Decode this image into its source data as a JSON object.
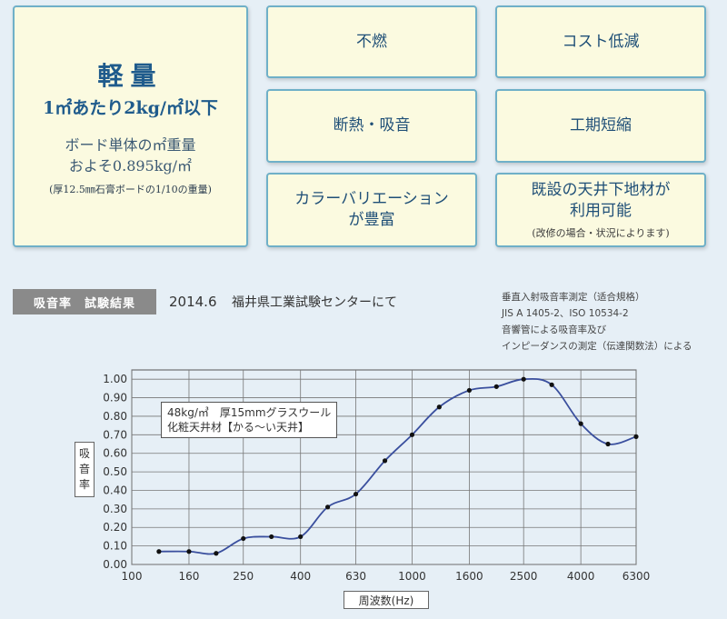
{
  "features": {
    "lightweight": {
      "title": "軽量",
      "subtitle": "1㎡あたり2kg/㎡以下",
      "line1": "ボード単体の㎡重量",
      "line2": "およそ0.895kg/㎡",
      "note": "(厚12.5㎜石膏ボードの1/10の重量)"
    },
    "items": [
      {
        "text": "不燃"
      },
      {
        "text": "コスト低減"
      },
      {
        "text": "断熱・吸音"
      },
      {
        "text": "工期短縮"
      },
      {
        "line1": "カラーバリエーション",
        "line2": "が豊富"
      },
      {
        "line1": "既設の天井下地材が",
        "line2": "利用可能",
        "note": "(改修の場合・状況によります)"
      }
    ]
  },
  "test": {
    "label": "吸音率　試験結果",
    "date": "2014.6",
    "place": "福井県工業試験センターにて",
    "standard_lines": [
      "垂直入射吸音率測定（适合規格）",
      "JIS A 1405-2、ISO 10534-2",
      "音響管による吸音率及び",
      "インピーダンスの測定（伝達関数法）による"
    ]
  },
  "chart_data": {
    "type": "line",
    "ylabel": "吸音率",
    "xlabel": "周波数(Hz)",
    "x_ticks": [
      "100",
      "160",
      "250",
      "400",
      "630",
      "1000",
      "1600",
      "2500",
      "4000",
      "6300"
    ],
    "y_ticks": [
      "0.00",
      "0.10",
      "0.20",
      "0.30",
      "0.40",
      "0.50",
      "0.60",
      "0.70",
      "0.80",
      "0.90",
      "1.00"
    ],
    "ylim": [
      0,
      1.05
    ],
    "xlim": [
      100,
      6300
    ],
    "x_scale": "log",
    "grid": true,
    "legend_lines": [
      "48kg/㎥　厚15mmグラスウール",
      "化粧天井材【かる〜い天井】"
    ],
    "series": [
      {
        "x": [
          125,
          160,
          200,
          250,
          315,
          400,
          500,
          630,
          800,
          1000,
          1250,
          1600,
          2000,
          2500,
          3150,
          4000,
          5000,
          6300
        ],
        "values": [
          0.07,
          0.07,
          0.06,
          0.14,
          0.15,
          0.15,
          0.31,
          0.38,
          0.56,
          0.7,
          0.85,
          0.94,
          0.96,
          1.0,
          0.97,
          0.76,
          0.65,
          0.69
        ],
        "color": "#3a4f9e"
      }
    ]
  }
}
